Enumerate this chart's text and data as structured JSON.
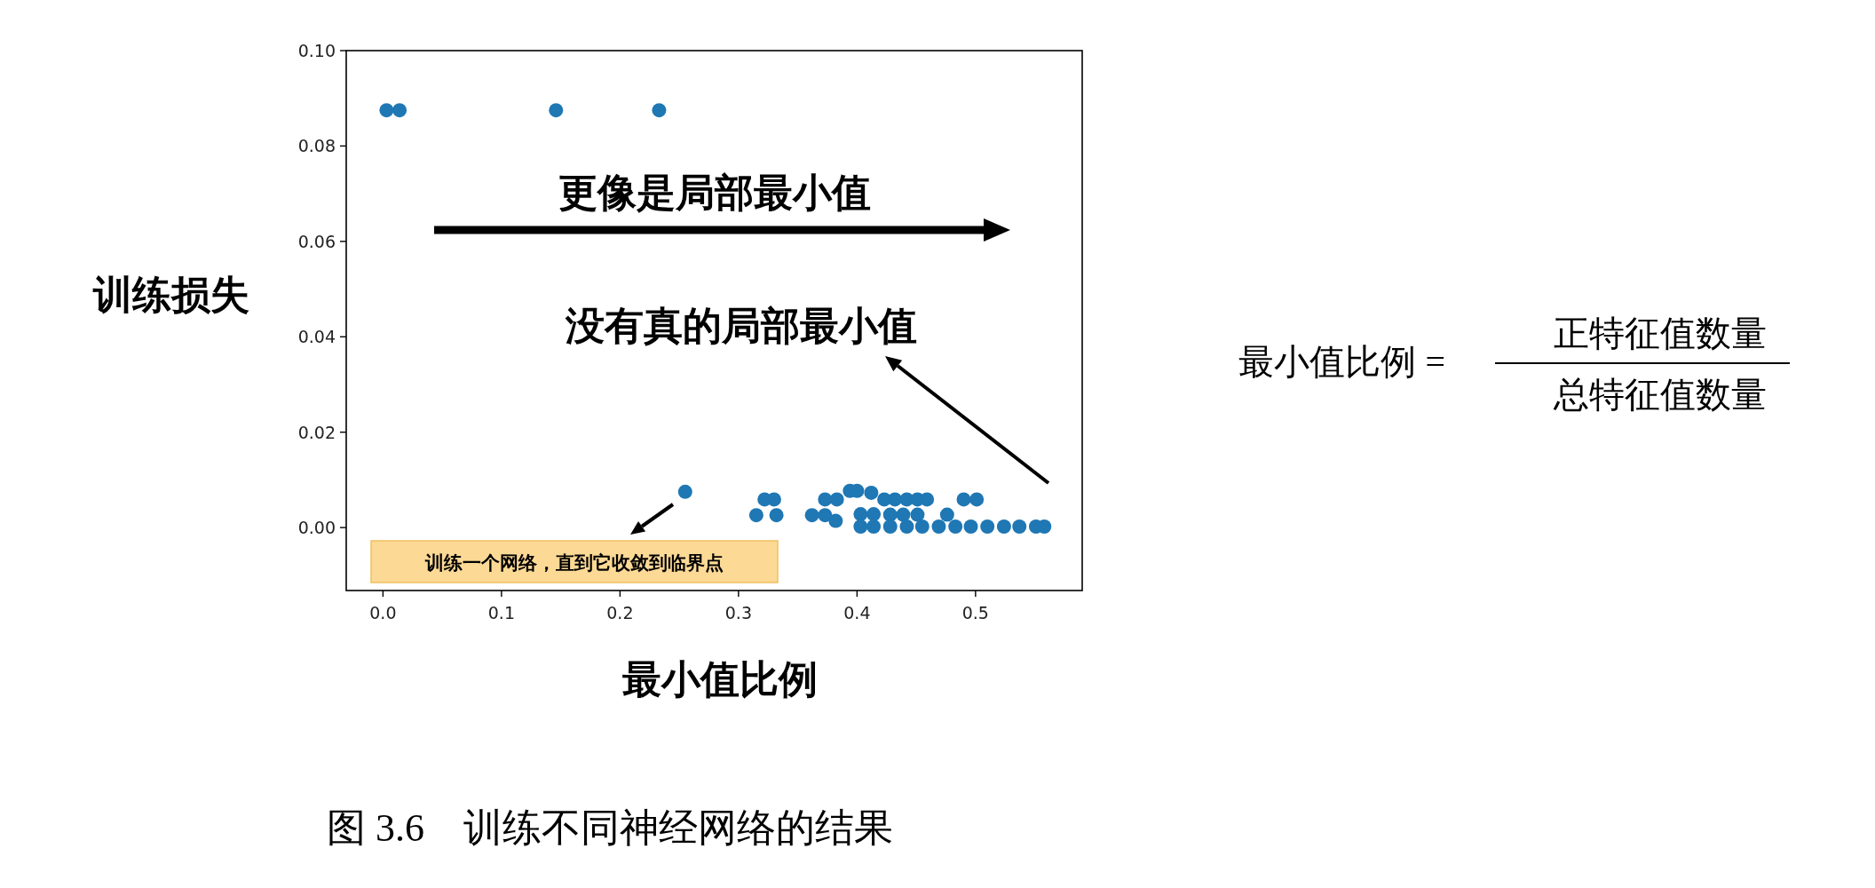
{
  "chart_data": {
    "type": "scatter",
    "xlabel": "最小值比例",
    "ylabel": "训练损失",
    "marker": "circle",
    "xlim": [
      -0.031,
      0.59
    ],
    "ylim": [
      -0.0132,
      0.1
    ],
    "xticks": [
      {
        "value": 0,
        "label": "0.0"
      },
      0.1,
      0.2,
      0.3,
      0.4,
      0.5
    ],
    "yticks": [
      {
        "value": 0,
        "label": "0.00"
      },
      0.02,
      0.04,
      0.06,
      0.08,
      {
        "value": 0.1,
        "label": "0.10"
      }
    ],
    "annotations": [
      "更像是局部最小值",
      "没有真的局部最小值",
      "训练一个网络，直到它收敛到临界点",
      "最小值比例 =",
      "正特征值数量",
      "总特征值数量",
      "图 3.6　训练不同神经网络的结果"
    ],
    "series": [
      {
        "color": "#1f77b4",
        "x": [
          0.003,
          0.014,
          0.146,
          0.233,
          0.255,
          0.322,
          0.33,
          0.315,
          0.332,
          0.362,
          0.373,
          0.382,
          0.373,
          0.383,
          0.394,
          0.4,
          0.412,
          0.423,
          0.432,
          0.442,
          0.451,
          0.459,
          0.49,
          0.501,
          0.403,
          0.414,
          0.403,
          0.414,
          0.428,
          0.439,
          0.451,
          0.476,
          0.428,
          0.442,
          0.455,
          0.469,
          0.483,
          0.496,
          0.51,
          0.524,
          0.537,
          0.551,
          0.558
        ],
        "values": [
          0.0875,
          0.0875,
          0.0875,
          0.0875,
          0.0075,
          0.0059,
          0.0059,
          0.0026,
          0.0026,
          0.0026,
          0.0026,
          0.0014,
          0.0059,
          0.0059,
          0.0077,
          0.0077,
          0.0073,
          0.0059,
          0.0059,
          0.0059,
          0.0059,
          0.0059,
          0.0059,
          0.0059,
          0.0028,
          0.0028,
          0.0002,
          0.0002,
          0.0027,
          0.0027,
          0.0027,
          0.0027,
          0.0002,
          0.0002,
          0.0002,
          0.0002,
          0.0002,
          0.0002,
          0.0002,
          0.0002,
          0.0002,
          0.0002,
          0.0002
        ]
      }
    ]
  }
}
